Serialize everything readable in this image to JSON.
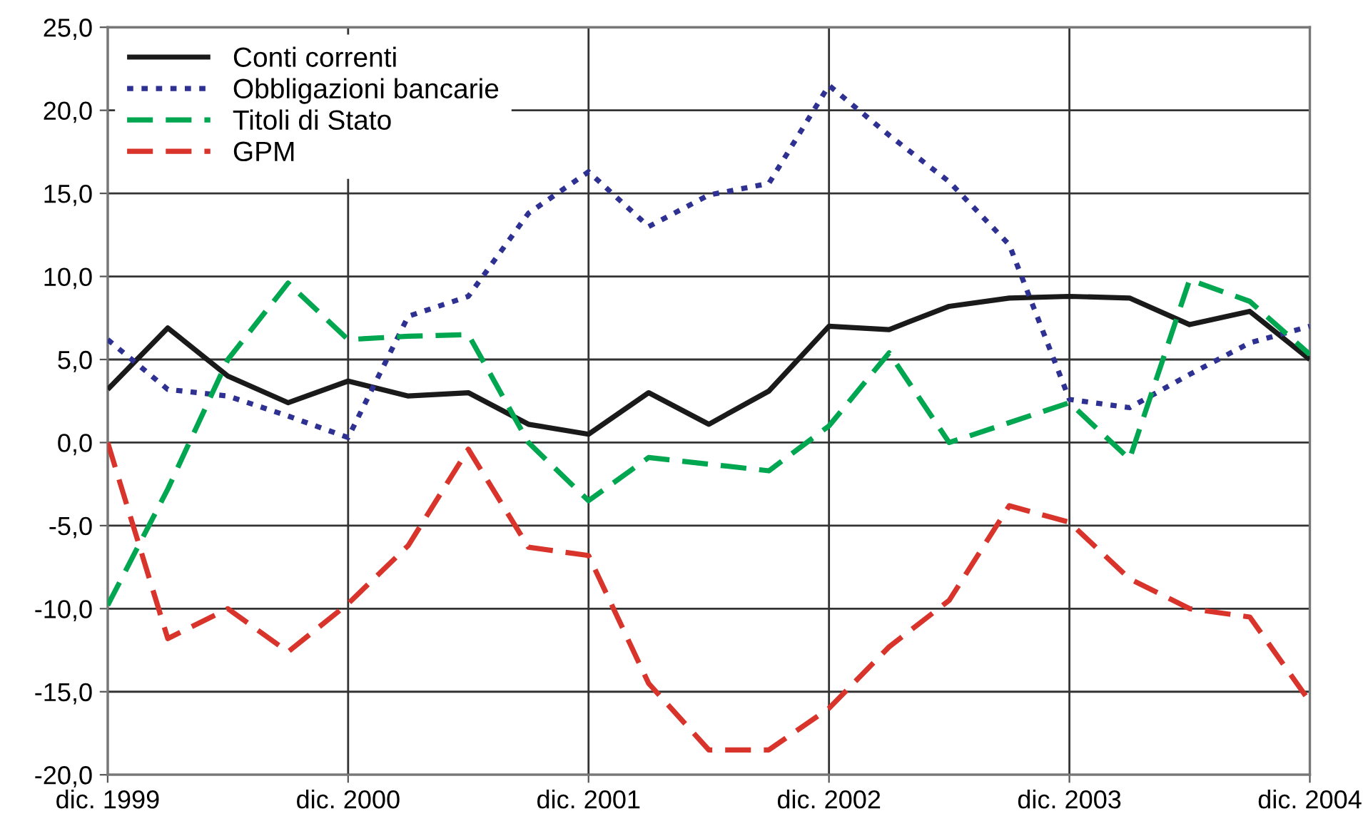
{
  "chart_data": {
    "type": "line",
    "categories": [
      "dic. 1999",
      null,
      null,
      null,
      "dic. 2000",
      null,
      null,
      null,
      "dic. 2001",
      null,
      null,
      null,
      "dic. 2002",
      null,
      null,
      null,
      "dic. 2003",
      null,
      null,
      null,
      "dic. 2004"
    ],
    "series": [
      {
        "name": "Conti correnti",
        "color": "#1a1a1a",
        "line_style": "solid",
        "values": [
          3.2,
          6.9,
          4.0,
          2.4,
          3.7,
          2.8,
          3.0,
          1.1,
          0.5,
          3.0,
          1.1,
          3.1,
          7.0,
          6.8,
          8.2,
          8.7,
          8.8,
          8.7,
          7.1,
          7.9,
          5.0
        ]
      },
      {
        "name": "Obbligazioni bancarie",
        "color": "#2e3192",
        "line_style": "dotted",
        "values": [
          6.2,
          3.2,
          2.8,
          1.6,
          0.3,
          7.6,
          8.8,
          13.8,
          16.3,
          13.0,
          14.9,
          15.6,
          21.5,
          18.5,
          15.7,
          11.9,
          2.6,
          2.1,
          4.1,
          6.0,
          7.0
        ]
      },
      {
        "name": "Titoli di Stato",
        "color": "#00a650",
        "line_style": "dashed",
        "values": [
          -9.8,
          -2.8,
          5.0,
          9.6,
          6.2,
          6.4,
          6.5,
          0.0,
          -3.5,
          -0.9,
          -1.3,
          -1.7,
          1.0,
          5.4,
          0.0,
          1.2,
          2.4,
          -1.0,
          9.8,
          8.5,
          5.3
        ]
      },
      {
        "name": "GPM",
        "color": "#d9342b",
        "line_style": "dashed",
        "values": [
          0.0,
          -11.8,
          -10.0,
          -12.6,
          -9.7,
          -6.2,
          -0.4,
          -6.3,
          -6.8,
          -14.5,
          -18.5,
          -18.5,
          -16.0,
          -12.3,
          -9.5,
          -3.8,
          -4.8,
          -8.2,
          -10.0,
          -10.5,
          -15.6
        ]
      }
    ],
    "ylim": [
      -20,
      25
    ],
    "yticks": [
      {
        "value": -20,
        "label": "-20,0"
      },
      {
        "value": -15,
        "label": "-15,0"
      },
      {
        "value": -10,
        "label": "-10,0"
      },
      {
        "value": -5,
        "label": "-5,0"
      },
      {
        "value": 0,
        "label": "0,0"
      },
      {
        "value": 5,
        "label": "5,0"
      },
      {
        "value": 10,
        "label": "10,0"
      },
      {
        "value": 15,
        "label": "15,0"
      },
      {
        "value": 20,
        "label": "20,0"
      },
      {
        "value": 25,
        "label": "25,0"
      }
    ],
    "grid": true,
    "legend": "top left"
  }
}
